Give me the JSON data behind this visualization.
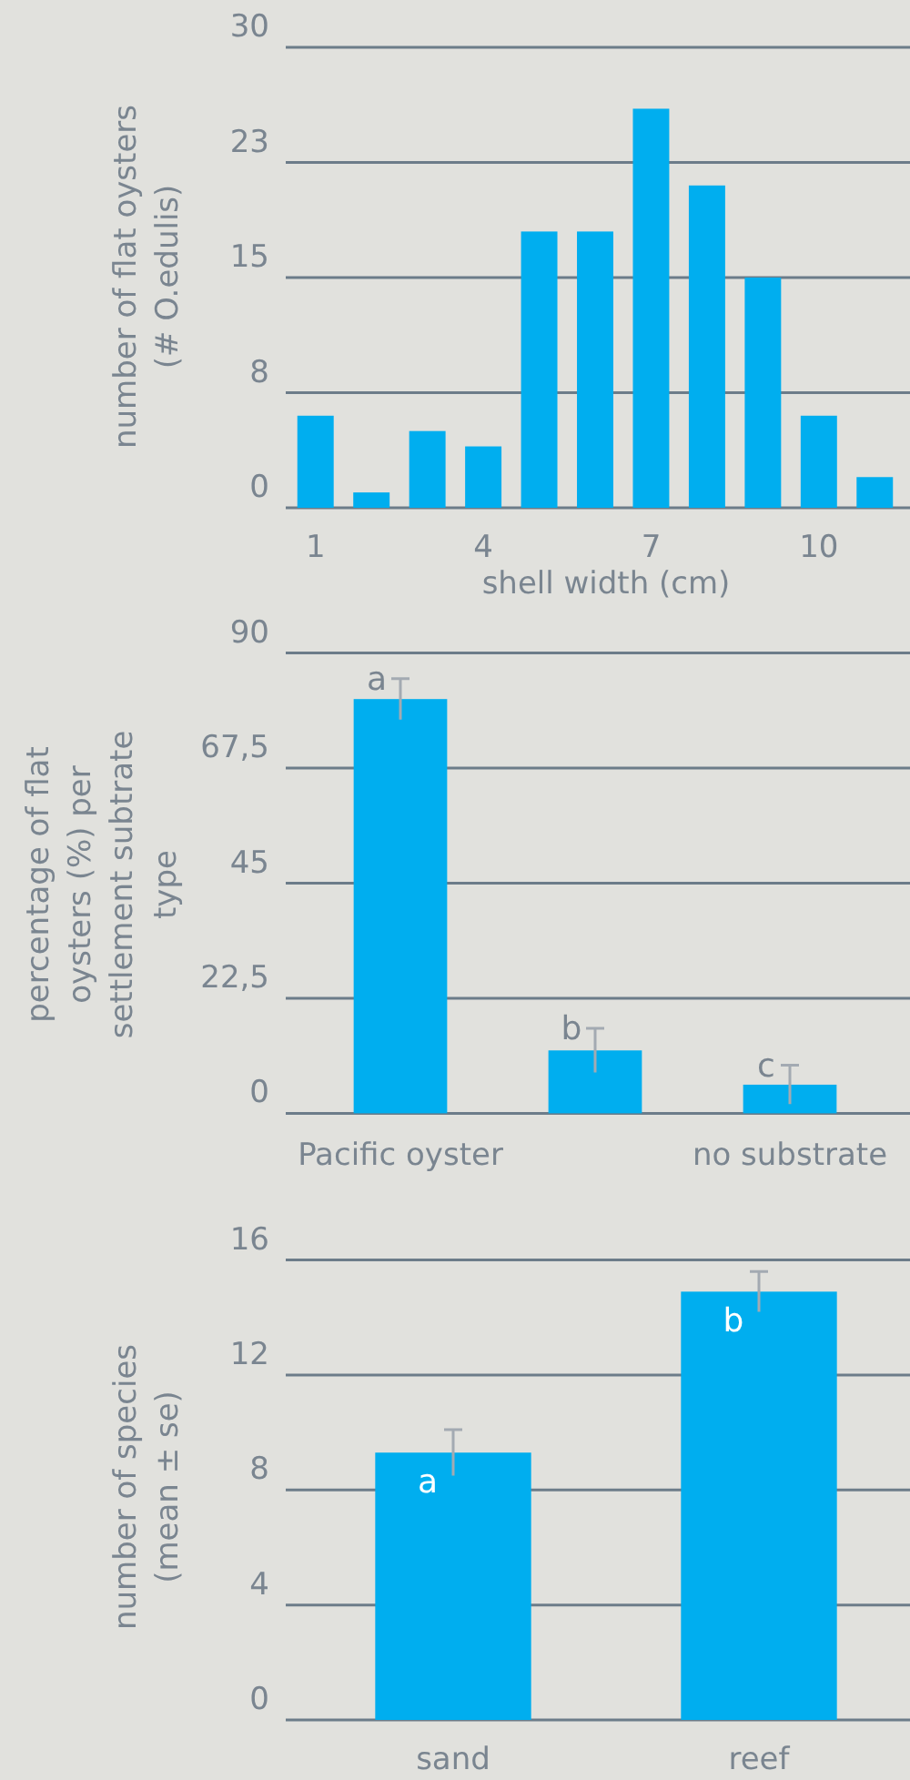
{
  "chart_data": [
    {
      "type": "bar",
      "ylabel": "number of flat oysters\n(# O.edulis)",
      "xlabel": "shell width (cm)",
      "categories": [
        "1",
        null,
        null,
        "4",
        null,
        null,
        "7",
        null,
        null,
        "10",
        null
      ],
      "values": [
        6,
        1,
        5,
        4,
        18,
        18,
        26,
        21,
        15,
        6,
        2
      ],
      "color": "#00aeef",
      "ylim": [
        0,
        30
      ],
      "yticks": [
        0,
        {
          "value": 7.5,
          "label": "8"
        },
        15,
        {
          "value": 22.5,
          "label": "23"
        },
        30
      ],
      "grid": "y"
    },
    {
      "type": "bar",
      "ylabel": "percentage of flat\noysters (%) per\nsettlement subtrate\ntype",
      "categories": [
        "Pacific oyster",
        null,
        "no substrate"
      ],
      "values": [
        81,
        12.3,
        5.6
      ],
      "errors": [
        4,
        4.3,
        3.8
      ],
      "color": "#00aeef",
      "annotations": [
        "a",
        "b",
        "c"
      ],
      "ylim": [
        0,
        90
      ],
      "yticks": [
        0,
        {
          "value": 22.5,
          "label": "22,5"
        },
        45,
        {
          "value": 67.5,
          "label": "67,5"
        },
        90
      ],
      "grid": "y"
    },
    {
      "type": "bar",
      "ylabel": "number of species\n(mean ± se)",
      "categories": [
        "sand",
        "reef"
      ],
      "values": [
        9.3,
        14.9
      ],
      "errors": [
        0.8,
        0.7
      ],
      "color": "#00aeef",
      "annotations": [
        "a",
        "b"
      ],
      "ylim": [
        0,
        16
      ],
      "yticks": [
        0,
        4,
        8,
        12,
        16
      ],
      "grid": "y"
    }
  ]
}
